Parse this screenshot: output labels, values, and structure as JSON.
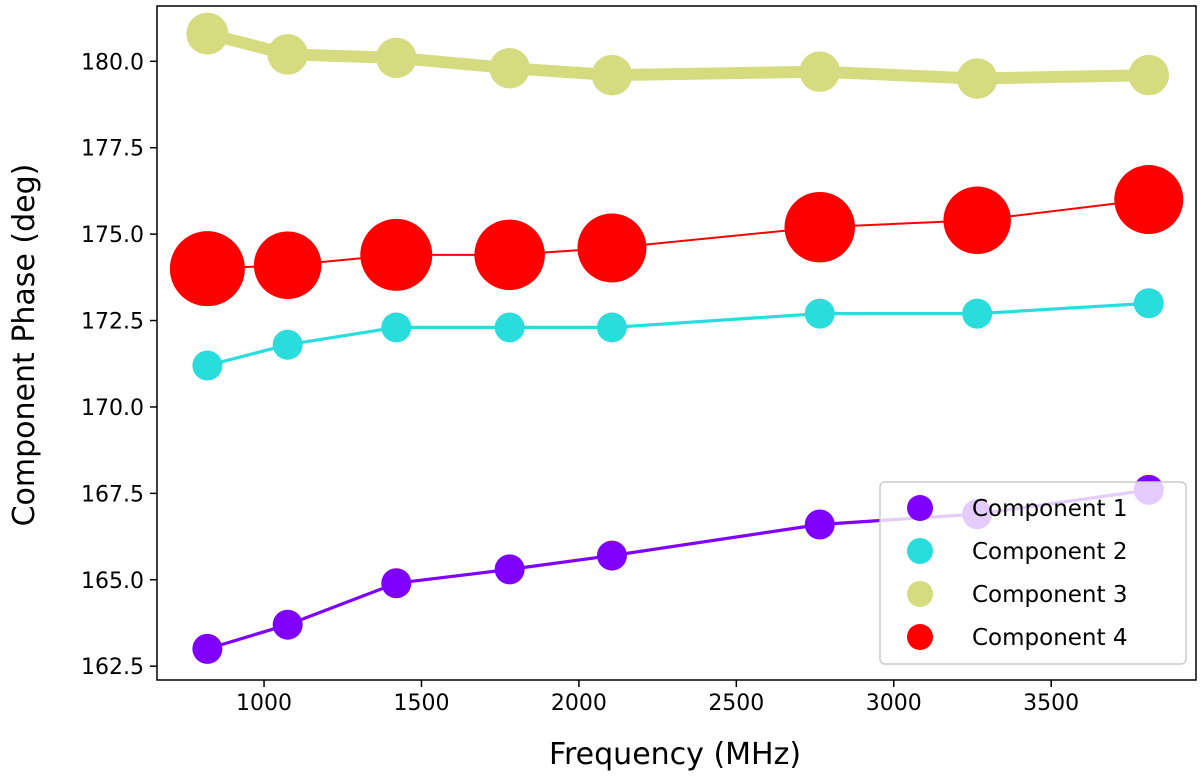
{
  "chart_data": {
    "type": "line",
    "title": "",
    "xlabel": "Frequency (MHz)",
    "ylabel": "Component Phase (deg)",
    "xlim": [
      660,
      3960
    ],
    "ylim": [
      162.1,
      181.6
    ],
    "xticks": [
      1000,
      1500,
      2000,
      2500,
      3000,
      3500
    ],
    "xtick_labels": [
      "1000",
      "1500",
      "2000",
      "2500",
      "3000",
      "3500"
    ],
    "yticks": [
      162.5,
      165.0,
      167.5,
      170.0,
      172.5,
      175.0,
      177.5,
      180.0
    ],
    "ytick_labels": [
      "162.5",
      "165.0",
      "167.5",
      "170.0",
      "172.5",
      "175.0",
      "177.5",
      "180.0"
    ],
    "x": [
      820,
      1075,
      1420,
      1780,
      2105,
      2765,
      3265,
      3810
    ],
    "legend_position": "lower-right",
    "series": [
      {
        "name": "Component 1",
        "color": "#7f00ff",
        "values": [
          163.0,
          163.7,
          164.9,
          165.3,
          165.7,
          166.6,
          166.9,
          167.6
        ],
        "marker_scale": [
          1,
          1,
          1,
          1,
          1,
          1,
          1,
          1
        ],
        "line_scale": 1.6
      },
      {
        "name": "Component 2",
        "color": "#2adddd",
        "values": [
          171.2,
          171.8,
          172.3,
          172.3,
          172.3,
          172.7,
          172.7,
          173.0
        ],
        "marker_scale": [
          1,
          1,
          1,
          1,
          1,
          1,
          1,
          1
        ],
        "line_scale": 1.6
      },
      {
        "name": "Component 3",
        "color": "#d4dc7f",
        "values": [
          180.8,
          180.2,
          180.1,
          179.8,
          179.6,
          179.7,
          179.5,
          179.6
        ],
        "marker_scale": [
          1.4,
          1.35,
          1.35,
          1.35,
          1.35,
          1.35,
          1.35,
          1.35
        ],
        "line_scale": 6
      },
      {
        "name": "Component 4",
        "color": "#ff0000",
        "values": [
          174.0,
          174.1,
          174.4,
          174.4,
          174.6,
          175.2,
          175.4,
          176.0
        ],
        "marker_scale": [
          2.5,
          2.25,
          2.4,
          2.35,
          2.3,
          2.35,
          2.25,
          2.3
        ],
        "line_scale": 1
      }
    ]
  }
}
